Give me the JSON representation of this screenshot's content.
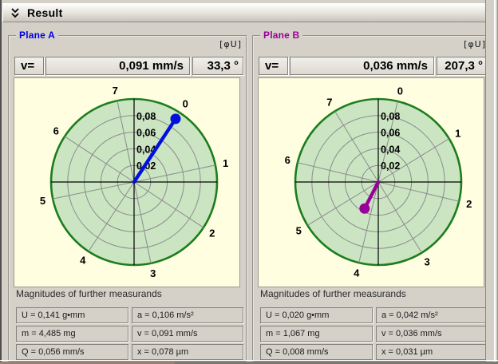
{
  "header": {
    "title": "Result",
    "collapse_icon": "double-chevron-down"
  },
  "colors": {
    "plane_a_accent": "#0000e0",
    "plane_b_accent": "#990099",
    "chart_fill": "#cbe5c3",
    "chart_rim": "#1c7d1c",
    "grid": "#8b8b8b",
    "axes": "#000000",
    "panel_gray": "#d5d1c9",
    "chart_background": "#fffee1"
  },
  "planes": [
    {
      "title": "Plane A",
      "title_color": "#0000e6",
      "phase_unit_label": "[φU]",
      "readout": {
        "label": "v=",
        "value": "0,091 mm/s",
        "angle": "33,3 °"
      },
      "chart_data": {
        "type": "polar-vector",
        "r_max": 0.1,
        "radial_ticks": [
          0.02,
          0.04,
          0.06,
          0.08
        ],
        "radial_tick_labels": [
          "0,02",
          "0,04",
          "0,06",
          "0,08"
        ],
        "position_labels": [
          "0",
          "1",
          "2",
          "3",
          "4",
          "5",
          "6",
          "7"
        ],
        "position_zero_angle_deg": 33.3,
        "position_step_deg": 45,
        "vector": {
          "magnitude": 0.091,
          "angle_deg": 33.3,
          "units": "mm/s",
          "color": "#0011dd"
        }
      },
      "measurands": {
        "title": "Magnitudes of further measurands",
        "cells": [
          [
            "U = 0,141 g•mm",
            "a = 0,106 m/s²"
          ],
          [
            "m = 4,485 mg",
            "v = 0,091 mm/s"
          ],
          [
            "Q = 0,056 mm/s",
            "x = 0,078 µm"
          ]
        ]
      }
    },
    {
      "title": "Plane B",
      "title_color": "#990099",
      "phase_unit_label": "[φU]",
      "readout": {
        "label": "v=",
        "value": "0,036 mm/s",
        "angle": "207,3 °"
      },
      "chart_data": {
        "type": "polar-vector",
        "r_max": 0.1,
        "radial_ticks": [
          0.02,
          0.04,
          0.06,
          0.08
        ],
        "radial_tick_labels": [
          "0,02",
          "0,04",
          "0,06",
          "0,08"
        ],
        "position_labels": [
          "0",
          "1",
          "2",
          "3",
          "4",
          "5",
          "6",
          "7"
        ],
        "position_zero_angle_deg": 13.5,
        "position_step_deg": 45,
        "vector": {
          "magnitude": 0.036,
          "angle_deg": 207.3,
          "units": "mm/s",
          "color": "#990099"
        }
      },
      "measurands": {
        "title": "Magnitudes of further measurands",
        "cells": [
          [
            "U = 0,020 g•mm",
            "a = 0,042 m/s²"
          ],
          [
            "m = 1,067 mg",
            "v = 0,036 mm/s"
          ],
          [
            "Q = 0,008 mm/s",
            "x = 0,031 µm"
          ]
        ]
      }
    }
  ]
}
